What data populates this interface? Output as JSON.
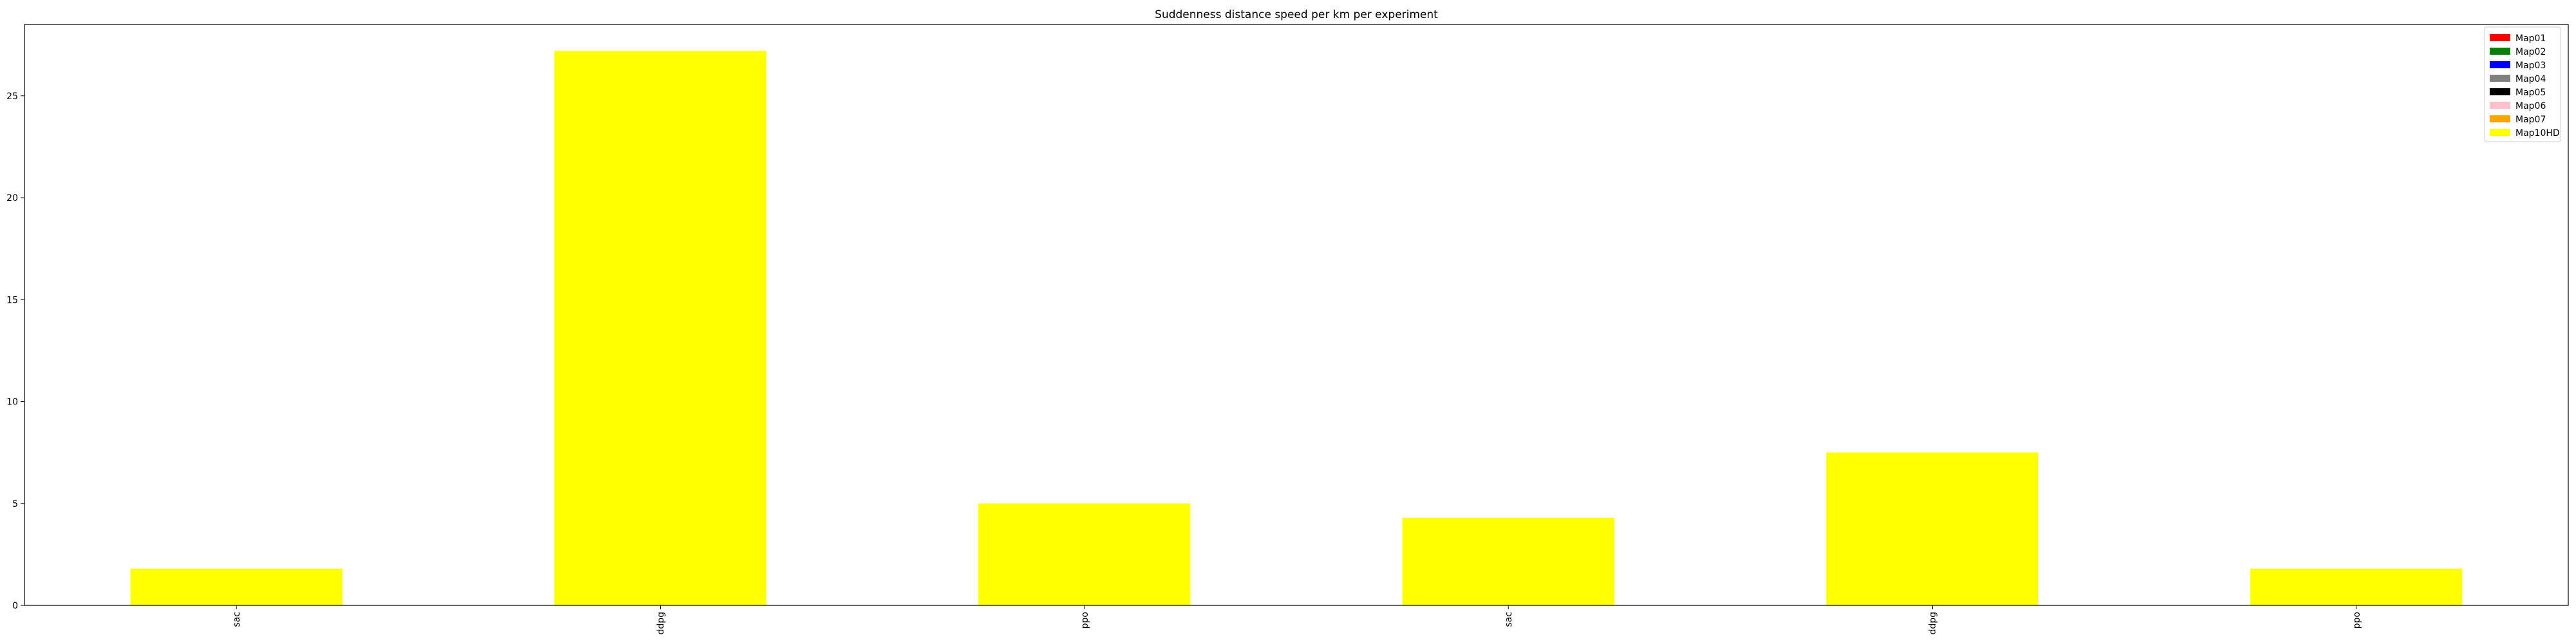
{
  "chart_data": {
    "type": "bar",
    "title": "Suddenness distance speed per km per experiment",
    "xlabel": "",
    "ylabel": "",
    "categories": [
      "sac",
      "ddpg",
      "ppo",
      "sac",
      "ddpg",
      "ppo"
    ],
    "ylim": [
      0,
      28.5
    ],
    "yticks": [
      0,
      5,
      10,
      15,
      20,
      25
    ],
    "grid": false,
    "legend_placement": "top-right",
    "series": [
      {
        "name": "Map01",
        "color": "#ff0000",
        "values": [
          0,
          0,
          0,
          0,
          0,
          0
        ]
      },
      {
        "name": "Map02",
        "color": "#008000",
        "values": [
          0,
          0,
          0,
          0,
          0,
          0
        ]
      },
      {
        "name": "Map03",
        "color": "#0000ff",
        "values": [
          0,
          0,
          0,
          0,
          0,
          0
        ]
      },
      {
        "name": "Map04",
        "color": "#808080",
        "values": [
          0,
          0,
          0,
          0,
          0,
          0
        ]
      },
      {
        "name": "Map05",
        "color": "#000000",
        "values": [
          0,
          0,
          0,
          0,
          0,
          0
        ]
      },
      {
        "name": "Map06",
        "color": "#ffc0cb",
        "values": [
          0,
          0,
          0,
          0,
          0,
          0
        ]
      },
      {
        "name": "Map07",
        "color": "#ffa500",
        "values": [
          0,
          0,
          0,
          0,
          0,
          0
        ]
      },
      {
        "name": "Map10HD",
        "color": "#ffff00",
        "values": [
          1.8,
          27.2,
          5.0,
          4.3,
          7.5,
          1.8
        ]
      }
    ]
  }
}
